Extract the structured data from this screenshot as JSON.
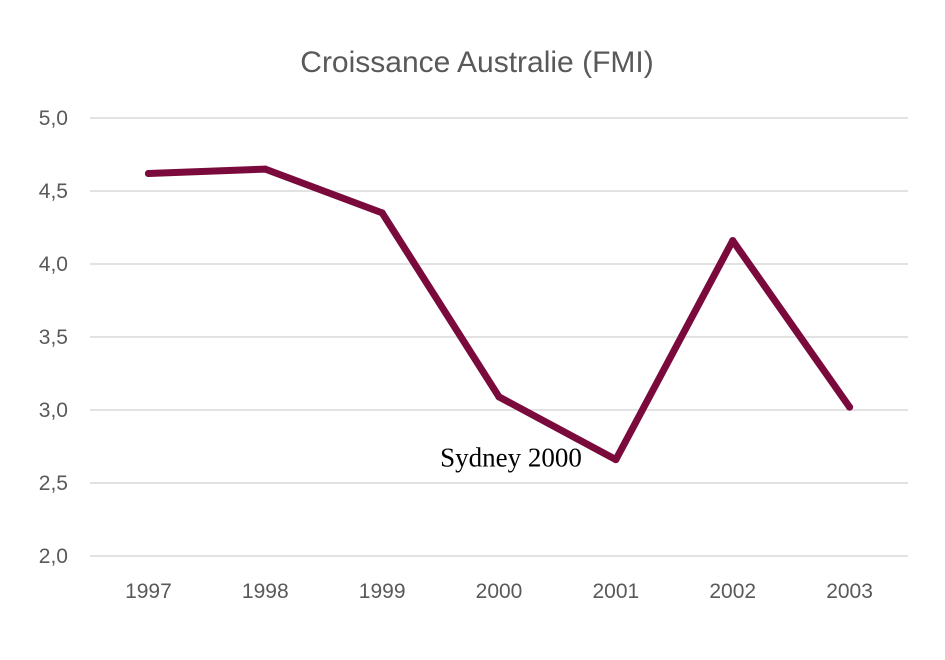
{
  "chart_data": {
    "type": "line",
    "title": "Croissance Australie (FMI)",
    "xlabel": "",
    "ylabel": "",
    "categories": [
      "1997",
      "1998",
      "1999",
      "2000",
      "2001",
      "2002",
      "2003"
    ],
    "series": [
      {
        "values": [
          4.62,
          4.65,
          4.35,
          3.09,
          2.66,
          4.16,
          3.02
        ],
        "color": "#7b0a3c"
      }
    ],
    "ylim": [
      2.0,
      5.0
    ],
    "yticks": [
      2.0,
      2.5,
      3.0,
      3.5,
      4.0,
      4.5,
      5.0
    ],
    "ytick_labels": [
      "2,0",
      "2,5",
      "3,0",
      "3,5",
      "4,0",
      "4,5",
      "5,0"
    ],
    "grid": true,
    "legend": "none",
    "annotations": [
      {
        "text": "Sydney 2000",
        "x": "2001",
        "y": 2.66
      }
    ]
  }
}
